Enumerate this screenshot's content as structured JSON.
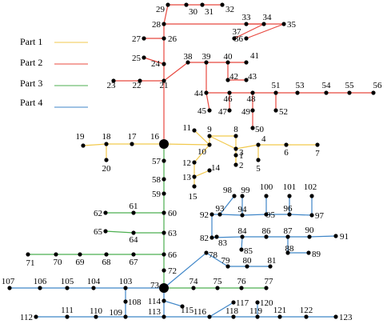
{
  "legend": [
    {
      "label": "Part 1",
      "color": "#f2c94c"
    },
    {
      "label": "Part 2",
      "color": "#e8483f"
    },
    {
      "label": "Part 3",
      "color": "#4caf50"
    },
    {
      "label": "Part 4",
      "color": "#3f86c8"
    }
  ],
  "nodes": [
    {
      "id": "1"
    },
    {
      "id": "2"
    },
    {
      "id": "3"
    },
    {
      "id": "4"
    },
    {
      "id": "5"
    },
    {
      "id": "6"
    },
    {
      "id": "7"
    },
    {
      "id": "8"
    },
    {
      "id": "9"
    },
    {
      "id": "10"
    },
    {
      "id": "11"
    },
    {
      "id": "12"
    },
    {
      "id": "13"
    },
    {
      "id": "14"
    },
    {
      "id": "15"
    },
    {
      "id": "16"
    },
    {
      "id": "17"
    },
    {
      "id": "18"
    },
    {
      "id": "19"
    },
    {
      "id": "20"
    },
    {
      "id": "21"
    },
    {
      "id": "22"
    },
    {
      "id": "23"
    },
    {
      "id": "24"
    },
    {
      "id": "25"
    },
    {
      "id": "26"
    },
    {
      "id": "27"
    },
    {
      "id": "28"
    },
    {
      "id": "29"
    },
    {
      "id": "30"
    },
    {
      "id": "31"
    },
    {
      "id": "32"
    },
    {
      "id": "33"
    },
    {
      "id": "34"
    },
    {
      "id": "35"
    },
    {
      "id": "36"
    },
    {
      "id": "37"
    },
    {
      "id": "38"
    },
    {
      "id": "39"
    },
    {
      "id": "40"
    },
    {
      "id": "41"
    },
    {
      "id": "42"
    },
    {
      "id": "43"
    },
    {
      "id": "44"
    },
    {
      "id": "45"
    },
    {
      "id": "46"
    },
    {
      "id": "47"
    },
    {
      "id": "48"
    },
    {
      "id": "49"
    },
    {
      "id": "50"
    },
    {
      "id": "51"
    },
    {
      "id": "52"
    },
    {
      "id": "53"
    },
    {
      "id": "54"
    },
    {
      "id": "55"
    },
    {
      "id": "56"
    },
    {
      "id": "57"
    },
    {
      "id": "58"
    },
    {
      "id": "59"
    },
    {
      "id": "60"
    },
    {
      "id": "61"
    },
    {
      "id": "62"
    },
    {
      "id": "63"
    },
    {
      "id": "64"
    },
    {
      "id": "65"
    },
    {
      "id": "66"
    },
    {
      "id": "67"
    },
    {
      "id": "68"
    },
    {
      "id": "69"
    },
    {
      "id": "70"
    },
    {
      "id": "71"
    },
    {
      "id": "72"
    },
    {
      "id": "73"
    },
    {
      "id": "74"
    },
    {
      "id": "75"
    },
    {
      "id": "76"
    },
    {
      "id": "77"
    },
    {
      "id": "78"
    },
    {
      "id": "79"
    },
    {
      "id": "80"
    },
    {
      "id": "81"
    },
    {
      "id": "82"
    },
    {
      "id": "83"
    },
    {
      "id": "84"
    },
    {
      "id": "85"
    },
    {
      "id": "86"
    },
    {
      "id": "87"
    },
    {
      "id": "88"
    },
    {
      "id": "89"
    },
    {
      "id": "90"
    },
    {
      "id": "91"
    },
    {
      "id": "92"
    },
    {
      "id": "93"
    },
    {
      "id": "94"
    },
    {
      "id": "95"
    },
    {
      "id": "96"
    },
    {
      "id": "97"
    },
    {
      "id": "98"
    },
    {
      "id": "99"
    },
    {
      "id": "100"
    },
    {
      "id": "101"
    },
    {
      "id": "102"
    },
    {
      "id": "103"
    },
    {
      "id": "104"
    },
    {
      "id": "105"
    },
    {
      "id": "106"
    },
    {
      "id": "107"
    },
    {
      "id": "108"
    },
    {
      "id": "109"
    },
    {
      "id": "110"
    },
    {
      "id": "111"
    },
    {
      "id": "112"
    },
    {
      "id": "113"
    },
    {
      "id": "114"
    },
    {
      "id": "115"
    },
    {
      "id": "116"
    },
    {
      "id": "117"
    },
    {
      "id": "118"
    },
    {
      "id": "119"
    },
    {
      "id": "120"
    },
    {
      "id": "121"
    },
    {
      "id": "122"
    },
    {
      "id": "123"
    }
  ]
}
